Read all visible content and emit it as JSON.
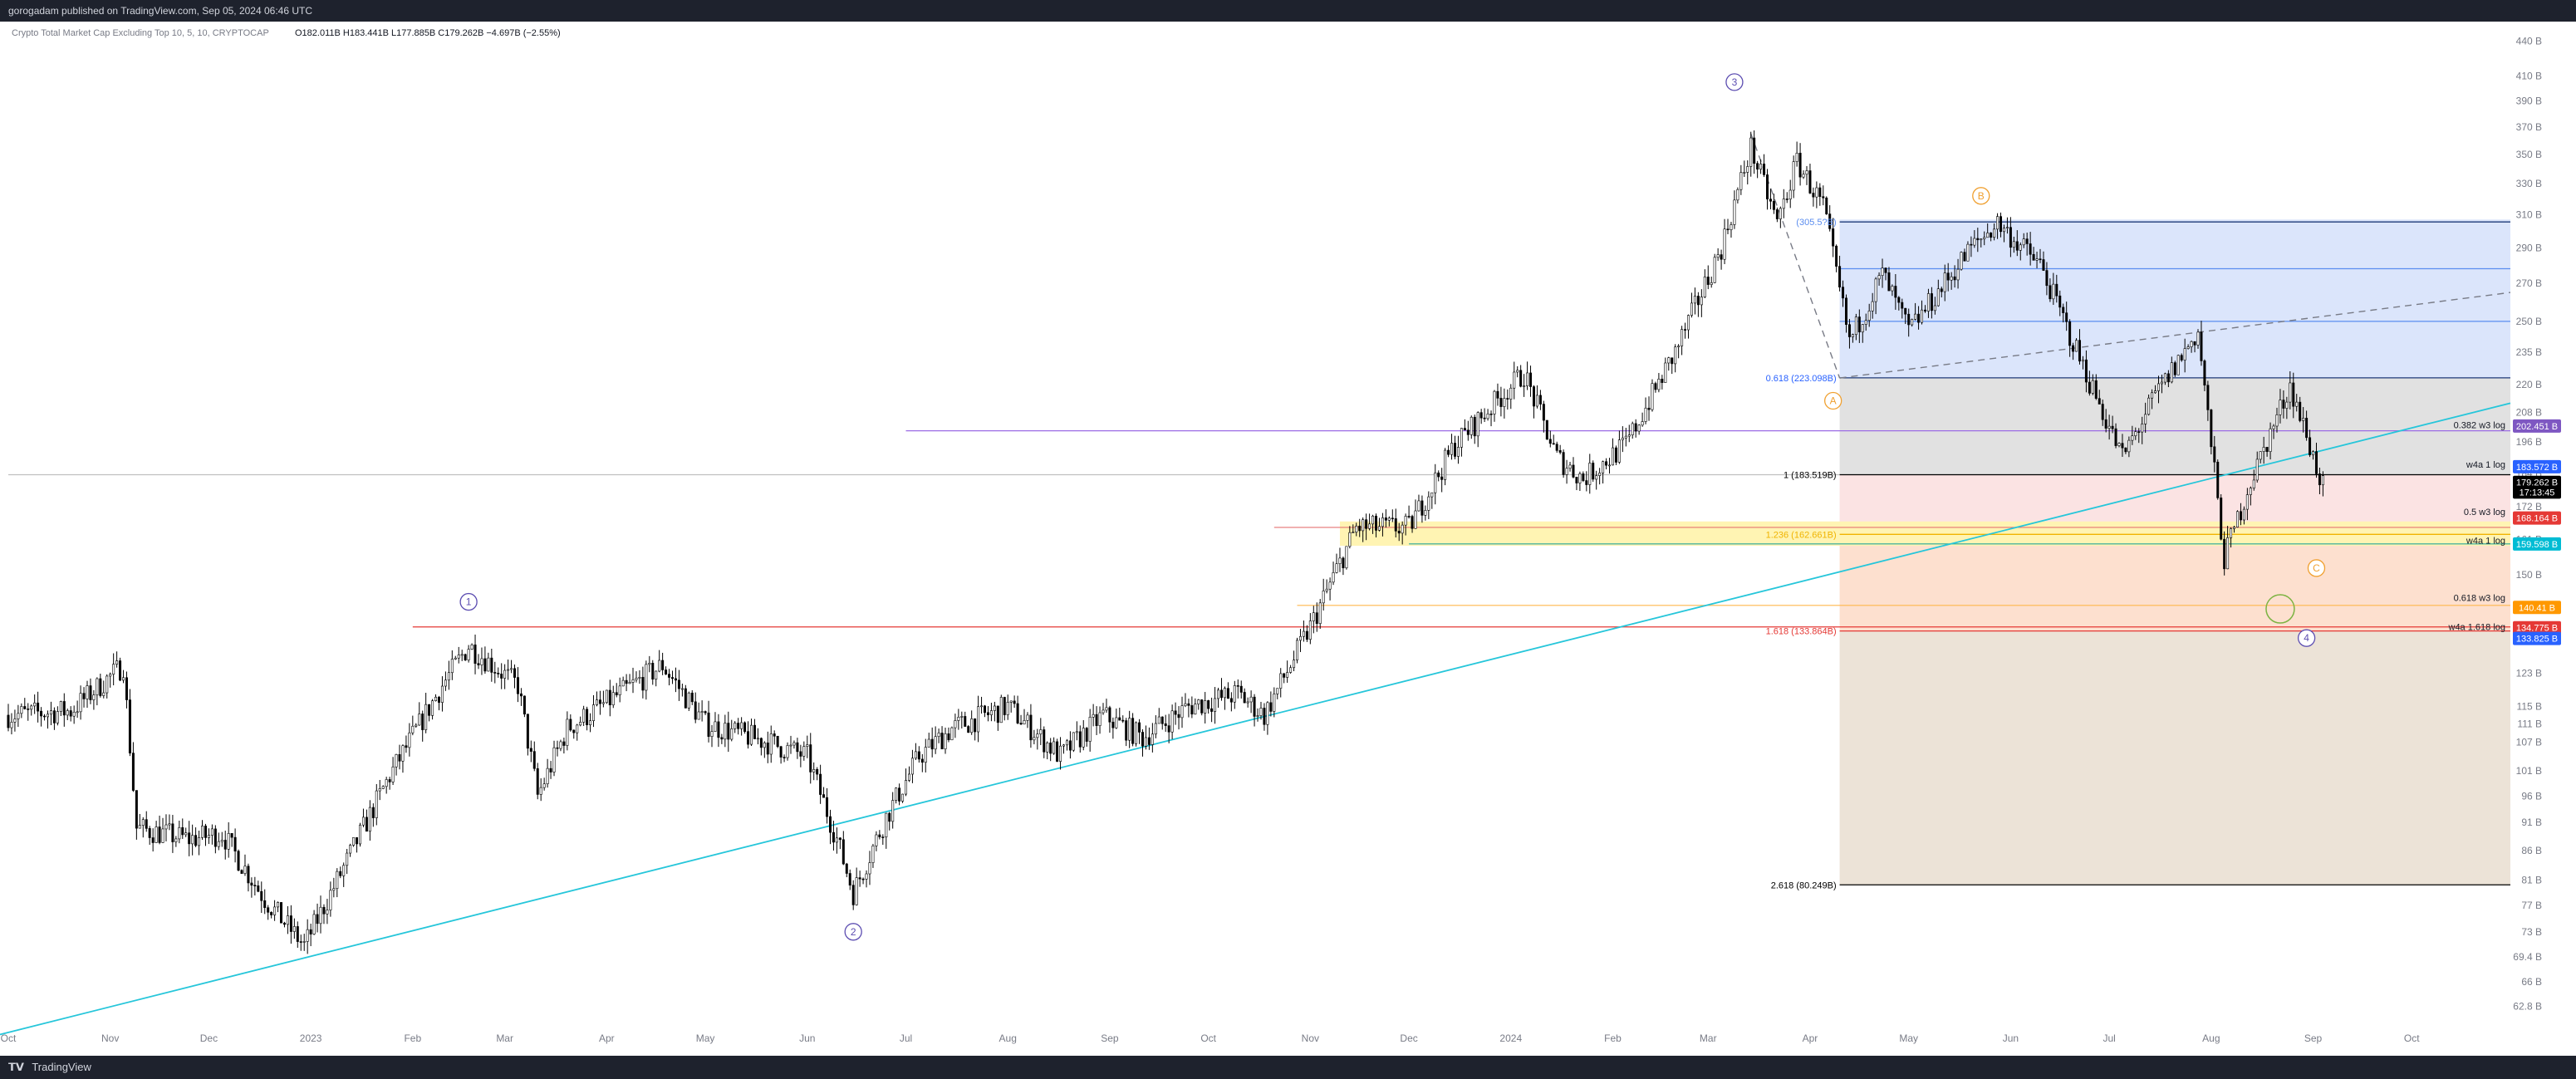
{
  "header": {
    "publish_line": "gorogadam published on TradingView.com, Sep 05, 2024 06:46 UTC"
  },
  "footer": {
    "logo_text": "TradingView"
  },
  "chart_data": {
    "type": "candlestick",
    "symbol_line": "Crypto Total Market Cap Excluding Top 10, 5, 10, CRYPTOCAP",
    "ohlc_line": "O182.011B H183.441B L177.885B C179.262B −4.697B (−2.55%)",
    "y_scale": "log",
    "ylim": [
      61,
      450
    ],
    "x_range": [
      "2022-10-01",
      "2024-10-31"
    ],
    "y_ticks": [
      "440 B",
      "410 B",
      "390 B",
      "370 B",
      "350 B",
      "330 B",
      "310 B",
      "290 B",
      "270 B",
      "250 B",
      "235 B",
      "220 B",
      "208 B",
      "196 B",
      "184 B",
      "172 B",
      "161 B",
      "150 B",
      "141 B",
      "131 B",
      "123 B",
      "115 B",
      "111 B",
      "107 B",
      "101 B",
      "96 B",
      "91 B",
      "86 B",
      "81 B",
      "77 B",
      "73 B",
      "69.4 B",
      "66 B",
      "62.8 B"
    ],
    "x_ticks": [
      {
        "date": "2022-10-01",
        "label": "Oct"
      },
      {
        "date": "2022-11-01",
        "label": "Nov"
      },
      {
        "date": "2022-12-01",
        "label": "Dec"
      },
      {
        "date": "2023-01-01",
        "label": "2023"
      },
      {
        "date": "2023-02-01",
        "label": "Feb"
      },
      {
        "date": "2023-03-01",
        "label": "Mar"
      },
      {
        "date": "2023-04-01",
        "label": "Apr"
      },
      {
        "date": "2023-05-01",
        "label": "May"
      },
      {
        "date": "2023-06-01",
        "label": "Jun"
      },
      {
        "date": "2023-07-01",
        "label": "Jul"
      },
      {
        "date": "2023-08-01",
        "label": "Aug"
      },
      {
        "date": "2023-09-01",
        "label": "Sep"
      },
      {
        "date": "2023-10-01",
        "label": "Oct"
      },
      {
        "date": "2023-11-01",
        "label": "Nov"
      },
      {
        "date": "2023-12-01",
        "label": "Dec"
      },
      {
        "date": "2024-01-01",
        "label": "2024"
      },
      {
        "date": "2024-02-01",
        "label": "Feb"
      },
      {
        "date": "2024-03-01",
        "label": "Mar"
      },
      {
        "date": "2024-04-01",
        "label": "Apr"
      },
      {
        "date": "2024-05-01",
        "label": "May"
      },
      {
        "date": "2024-06-01",
        "label": "Jun"
      },
      {
        "date": "2024-07-01",
        "label": "Jul"
      },
      {
        "date": "2024-08-01",
        "label": "Aug"
      },
      {
        "date": "2024-09-01",
        "label": "Sep"
      },
      {
        "date": "2024-10-01",
        "label": "Oct"
      }
    ],
    "price_path": [
      [
        "2022-10-01",
        113
      ],
      [
        "2022-10-20",
        114
      ],
      [
        "2022-11-05",
        125
      ],
      [
        "2022-11-09",
        90
      ],
      [
        "2022-11-25",
        88
      ],
      [
        "2022-12-05",
        89
      ],
      [
        "2022-12-18",
        78
      ],
      [
        "2022-12-30",
        71
      ],
      [
        "2023-01-10",
        82
      ],
      [
        "2023-01-25",
        100
      ],
      [
        "2023-02-10",
        120
      ],
      [
        "2023-02-18",
        130
      ],
      [
        "2023-03-05",
        120
      ],
      [
        "2023-03-11",
        96
      ],
      [
        "2023-03-20",
        110
      ],
      [
        "2023-04-05",
        118
      ],
      [
        "2023-04-18",
        125
      ],
      [
        "2023-05-01",
        111
      ],
      [
        "2023-05-20",
        107
      ],
      [
        "2023-06-01",
        104
      ],
      [
        "2023-06-10",
        88
      ],
      [
        "2023-06-15",
        79
      ],
      [
        "2023-06-25",
        92
      ],
      [
        "2023-07-05",
        104
      ],
      [
        "2023-07-15",
        110
      ],
      [
        "2023-08-01",
        115
      ],
      [
        "2023-08-17",
        104
      ],
      [
        "2023-08-30",
        113
      ],
      [
        "2023-09-11",
        108
      ],
      [
        "2023-09-25",
        115
      ],
      [
        "2023-10-10",
        118
      ],
      [
        "2023-10-18",
        113
      ],
      [
        "2023-11-01",
        135
      ],
      [
        "2023-11-15",
        165
      ],
      [
        "2023-12-01",
        165
      ],
      [
        "2023-12-15",
        195
      ],
      [
        "2023-12-31",
        218
      ],
      [
        "2024-01-05",
        225
      ],
      [
        "2024-01-15",
        190
      ],
      [
        "2024-01-23",
        182
      ],
      [
        "2024-02-05",
        195
      ],
      [
        "2024-02-20",
        235
      ],
      [
        "2024-03-05",
        290
      ],
      [
        "2024-03-14",
        355
      ],
      [
        "2024-03-22",
        305
      ],
      [
        "2024-03-28",
        345
      ],
      [
        "2024-04-05",
        315
      ],
      [
        "2024-04-13",
        240
      ],
      [
        "2024-04-23",
        275
      ],
      [
        "2024-05-01",
        245
      ],
      [
        "2024-05-20",
        290
      ],
      [
        "2024-05-28",
        305
      ],
      [
        "2024-06-10",
        280
      ],
      [
        "2024-06-24",
        225
      ],
      [
        "2024-07-05",
        190
      ],
      [
        "2024-07-15",
        215
      ],
      [
        "2024-07-28",
        245
      ],
      [
        "2024-08-05",
        155
      ],
      [
        "2024-08-12",
        178
      ],
      [
        "2024-08-25",
        220
      ],
      [
        "2024-09-04",
        179
      ]
    ],
    "trendlines": [
      {
        "name": "support",
        "color": "#26c6da",
        "from": [
          "2022-09-25",
          59
        ],
        "to": [
          "2024-10-31",
          212
        ]
      },
      {
        "name": "dashed-resistance",
        "color": "#787b86",
        "dashed": true,
        "from": [
          "2024-04-10",
          223
        ],
        "to": [
          "2024-10-31",
          265
        ]
      },
      {
        "name": "dashed-wave",
        "color": "#787b86",
        "dashed": true,
        "from": [
          "2024-03-14",
          365
        ],
        "to": [
          "2024-04-10",
          223
        ]
      }
    ],
    "hlines": [
      {
        "price": 183.5,
        "color": "#bfbfbf",
        "from": "2022-10-01",
        "to": "2024-10-31"
      },
      {
        "price": 200.5,
        "color": "#9c6ce5",
        "from": "2023-07-01",
        "to": "2024-10-31"
      },
      {
        "price": 135,
        "color": "#e53935",
        "from": "2023-02-01",
        "to": "2024-10-31"
      },
      {
        "price": 165,
        "color": "#e57373",
        "from": "2023-10-21",
        "to": "2024-10-31"
      },
      {
        "price": 159.6,
        "color": "#26a69a",
        "from": "2023-12-01",
        "to": "2024-10-31"
      },
      {
        "price": 141,
        "color": "#ffb74d",
        "from": "2023-10-28",
        "to": "2024-10-31"
      }
    ],
    "zones": [
      {
        "name": "fib-blue",
        "color": "#dbe5fb",
        "from": "2024-04-10",
        "to": "2024-10-31",
        "top": 307,
        "bottom": 223
      },
      {
        "name": "fib-grey",
        "color": "#e1e1e1",
        "from": "2024-04-10",
        "to": "2024-10-31",
        "top": 223,
        "bottom": 183.5
      },
      {
        "name": "fib-pink",
        "color": "#fbe3e3",
        "from": "2024-04-10",
        "to": "2024-10-31",
        "top": 183.5,
        "bottom": 162.7
      },
      {
        "name": "fib-salmon",
        "color": "#fde0cf",
        "from": "2024-04-10",
        "to": "2024-10-31",
        "top": 162.7,
        "bottom": 133.9
      },
      {
        "name": "fib-tan",
        "color": "#ece3d7",
        "from": "2024-04-10",
        "to": "2024-10-31",
        "top": 133.9,
        "bottom": 80.25
      },
      {
        "name": "yellow-box",
        "color": "#fff4b3",
        "from": "2023-11-10",
        "to": "2024-10-31",
        "top": 167,
        "bottom": 159
      }
    ],
    "fib_lines": [
      {
        "price": 305.5,
        "color": "#1e3a78"
      },
      {
        "price": 278,
        "color": "#5b8def"
      },
      {
        "price": 250,
        "color": "#5b8def"
      },
      {
        "price": 223.1,
        "color": "#1e3a78"
      },
      {
        "price": 183.5,
        "color": "#000000"
      },
      {
        "price": 162.7,
        "color": "#f0b400"
      },
      {
        "price": 133.9,
        "color": "#e53935"
      },
      {
        "price": 80.25,
        "color": "#000000"
      }
    ],
    "fib_labels": [
      {
        "text": "(305.5?B)",
        "price": 305.5,
        "color": "#5b8def"
      },
      {
        "text": "0.618 (223.098B)",
        "price": 223.1,
        "color": "#2962ff"
      },
      {
        "text": "1 (183.519B)",
        "price": 183.5,
        "color": "#000000"
      },
      {
        "text": "1.236 (162.661B)",
        "price": 162.7,
        "color": "#f0b400"
      },
      {
        "text": "1.618 (133.864B)",
        "price": 133.9,
        "color": "#e53935"
      },
      {
        "text": "2.618 (80.249B)",
        "price": 80.25,
        "color": "#000000"
      }
    ],
    "right_annotations": [
      {
        "text": "0.382 w3 log",
        "price": 202.5
      },
      {
        "text": "w4a 1 log",
        "price": 187
      },
      {
        "text": "0.5 w3 log",
        "price": 170
      },
      {
        "text": "w4a 1 log",
        "price": 160.5
      },
      {
        "text": "0.618 w3 log",
        "price": 143
      },
      {
        "text": "w4a 1.618 log",
        "price": 134.8
      }
    ],
    "price_tags": [
      {
        "text": "202.451 B",
        "price": 202.45,
        "bg": "#7e57c2"
      },
      {
        "text": "183.572 B",
        "price": 186.5,
        "bg": "#2962ff"
      },
      {
        "text": "179.262 B",
        "price": 180.7,
        "bg": "#000000"
      },
      {
        "text": "17:13:45",
        "price": 177.2,
        "bg": "#000000"
      },
      {
        "text": "168.164 B",
        "price": 168.16,
        "bg": "#e53935"
      },
      {
        "text": "159.598 B",
        "price": 159.6,
        "bg": "#00bcd4"
      },
      {
        "text": "140.41 B",
        "price": 140.41,
        "bg": "#ff9800"
      },
      {
        "text": "134.775 B",
        "price": 134.78,
        "bg": "#e53935"
      },
      {
        "text": "133.825 B",
        "price": 131.9,
        "bg": "#2962ff"
      }
    ],
    "wave_labels": [
      {
        "text": "1",
        "date": "2023-02-18",
        "price": 142,
        "color": "#5c4db1"
      },
      {
        "text": "2",
        "date": "2023-06-15",
        "price": 73,
        "color": "#5c4db1"
      },
      {
        "text": "3",
        "date": "2024-03-09",
        "price": 405,
        "color": "#5c4db1"
      },
      {
        "text": "4",
        "date": "2024-08-30",
        "price": 132,
        "color": "#5c4db1"
      },
      {
        "text": "A",
        "date": "2024-04-08",
        "price": 213,
        "color": "#f0a030"
      },
      {
        "text": "B",
        "date": "2024-05-23",
        "price": 322,
        "color": "#f0a030"
      },
      {
        "text": "C",
        "date": "2024-09-02",
        "price": 152,
        "color": "#f0a030"
      }
    ],
    "target_circle": {
      "date": "2024-08-22",
      "price": 140,
      "color": "#7cb342"
    }
  }
}
